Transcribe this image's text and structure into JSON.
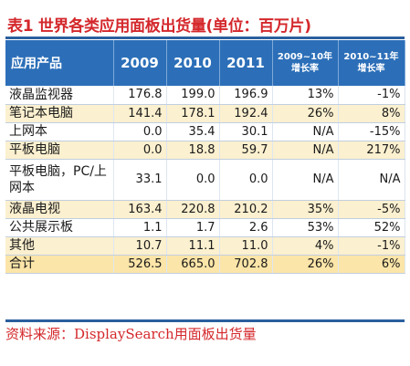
{
  "title": "表1 世界各类应用面板出货量(单位：百万片)",
  "header": {
    "product": "应用产品",
    "y2009": "2009",
    "y2010": "2010",
    "y2011": "2011",
    "g1_line1": "2009~10年",
    "g1_line2": "增长率",
    "g2_line1": "2010~11年",
    "g2_line2": "增长率"
  },
  "rows": [
    {
      "name": "液晶监视器",
      "y2009": "176.8",
      "y2010": "199.0",
      "y2011": "196.9",
      "g1": "13%",
      "g2": "-1%"
    },
    {
      "name": "笔记本电脑",
      "y2009": "141.4",
      "y2010": "178.1",
      "y2011": "192.4",
      "g1": "26%",
      "g2": "8%"
    },
    {
      "name": "上网本",
      "y2009": "0.0",
      "y2010": "35.4",
      "y2011": "30.1",
      "g1": "N/A",
      "g2": "-15%"
    },
    {
      "name": "平板电脑",
      "y2009": "0.0",
      "y2010": "18.8",
      "y2011": "59.7",
      "g1": "N/A",
      "g2": "217%"
    },
    {
      "name": "平板电脑，PC/上网本",
      "y2009": "33.1",
      "y2010": "0.0",
      "y2011": "0.0",
      "g1": "N/A",
      "g2": "N/A"
    },
    {
      "name": "液晶电视",
      "y2009": "163.4",
      "y2010": "220.8",
      "y2011": "210.2",
      "g1": "35%",
      "g2": "-5%"
    },
    {
      "name": "公共展示板",
      "y2009": "1.1",
      "y2010": "1.7",
      "y2011": "2.6",
      "g1": "53%",
      "g2": "52%"
    },
    {
      "name": "其他",
      "y2009": "10.7",
      "y2010": "11.1",
      "y2011": "11.0",
      "g1": "4%",
      "g2": "-1%"
    },
    {
      "name": "合计",
      "y2009": "526.5",
      "y2010": "665.0",
      "y2011": "702.8",
      "g1": "26%",
      "g2": "6%"
    }
  ],
  "source": "资料来源：DisplaySearch用面板出货量",
  "colors": {
    "title": "#d4272b",
    "header_bg": "#2c6fb8",
    "row_alt": "#fbf0cf",
    "total_row": "#fbe5a8"
  }
}
